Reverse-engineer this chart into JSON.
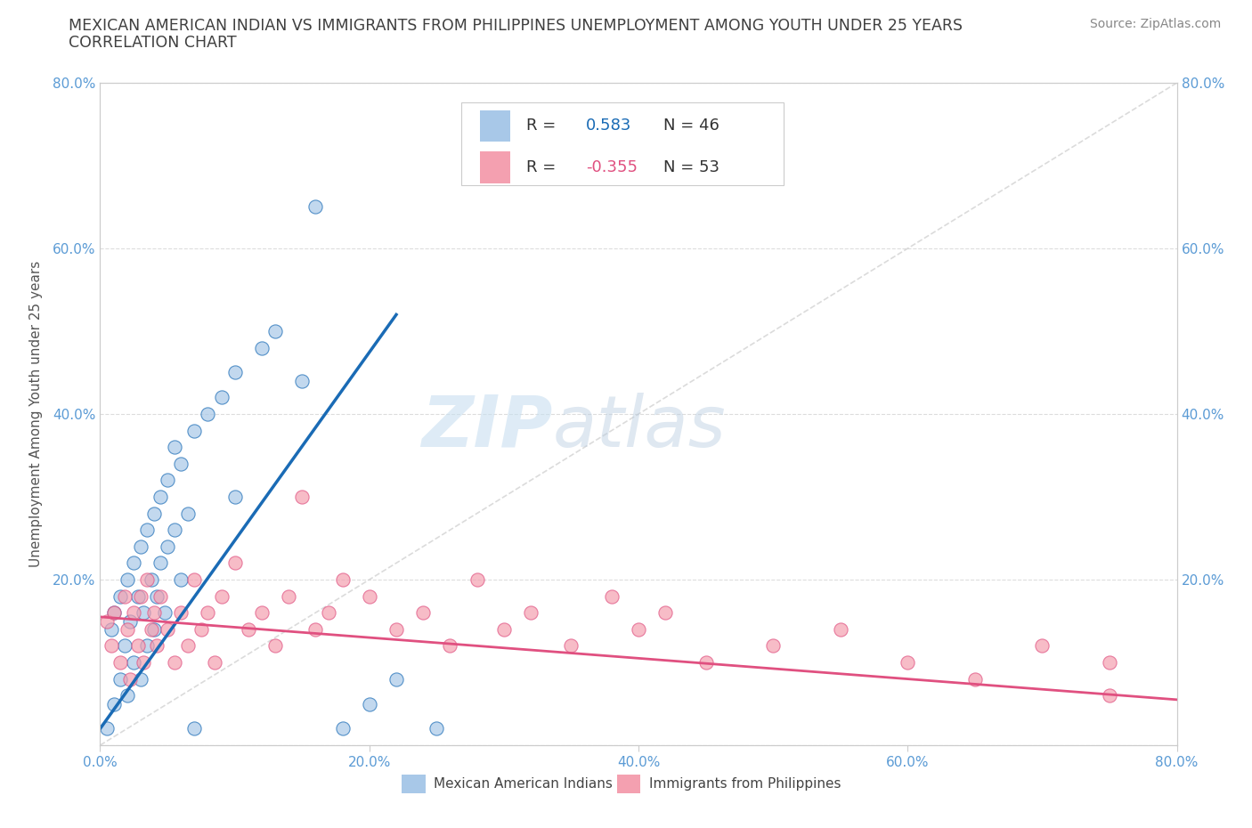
{
  "title_line1": "MEXICAN AMERICAN INDIAN VS IMMIGRANTS FROM PHILIPPINES UNEMPLOYMENT AMONG YOUTH UNDER 25 YEARS",
  "title_line2": "CORRELATION CHART",
  "source": "Source: ZipAtlas.com",
  "ylabel": "Unemployment Among Youth under 25 years",
  "xmin": 0.0,
  "xmax": 0.8,
  "ymin": 0.0,
  "ymax": 0.8,
  "xtick_labels": [
    "0.0%",
    "20.0%",
    "40.0%",
    "60.0%",
    "80.0%"
  ],
  "xtick_vals": [
    0.0,
    0.2,
    0.4,
    0.6,
    0.8
  ],
  "ytick_labels": [
    "",
    "20.0%",
    "40.0%",
    "60.0%",
    "80.0%"
  ],
  "ytick_vals": [
    0.0,
    0.2,
    0.4,
    0.6,
    0.8
  ],
  "r_blue": 0.583,
  "n_blue": 46,
  "r_pink": -0.355,
  "n_pink": 53,
  "blue_color": "#a8c8e8",
  "pink_color": "#f4a0b0",
  "blue_line_color": "#1a6bb5",
  "pink_line_color": "#e05080",
  "diagonal_color": "#cccccc",
  "background_color": "#ffffff",
  "watermark_color": "#d8e8f4",
  "blue_scatter_x": [
    0.005,
    0.008,
    0.01,
    0.01,
    0.015,
    0.015,
    0.018,
    0.02,
    0.02,
    0.022,
    0.025,
    0.025,
    0.028,
    0.03,
    0.03,
    0.032,
    0.035,
    0.035,
    0.038,
    0.04,
    0.04,
    0.042,
    0.045,
    0.045,
    0.048,
    0.05,
    0.05,
    0.055,
    0.055,
    0.06,
    0.06,
    0.065,
    0.07,
    0.07,
    0.08,
    0.09,
    0.1,
    0.1,
    0.12,
    0.13,
    0.15,
    0.16,
    0.18,
    0.2,
    0.22,
    0.25
  ],
  "blue_scatter_y": [
    0.02,
    0.14,
    0.05,
    0.16,
    0.08,
    0.18,
    0.12,
    0.06,
    0.2,
    0.15,
    0.1,
    0.22,
    0.18,
    0.08,
    0.24,
    0.16,
    0.12,
    0.26,
    0.2,
    0.14,
    0.28,
    0.18,
    0.22,
    0.3,
    0.16,
    0.24,
    0.32,
    0.26,
    0.36,
    0.2,
    0.34,
    0.28,
    0.02,
    0.38,
    0.4,
    0.42,
    0.45,
    0.3,
    0.48,
    0.5,
    0.44,
    0.65,
    0.02,
    0.05,
    0.08,
    0.02
  ],
  "pink_scatter_x": [
    0.005,
    0.008,
    0.01,
    0.015,
    0.018,
    0.02,
    0.022,
    0.025,
    0.028,
    0.03,
    0.032,
    0.035,
    0.038,
    0.04,
    0.042,
    0.045,
    0.05,
    0.055,
    0.06,
    0.065,
    0.07,
    0.075,
    0.08,
    0.085,
    0.09,
    0.1,
    0.11,
    0.12,
    0.13,
    0.14,
    0.15,
    0.16,
    0.17,
    0.18,
    0.2,
    0.22,
    0.24,
    0.26,
    0.28,
    0.3,
    0.32,
    0.35,
    0.38,
    0.4,
    0.42,
    0.45,
    0.5,
    0.55,
    0.6,
    0.65,
    0.7,
    0.75,
    0.75
  ],
  "pink_scatter_y": [
    0.15,
    0.12,
    0.16,
    0.1,
    0.18,
    0.14,
    0.08,
    0.16,
    0.12,
    0.18,
    0.1,
    0.2,
    0.14,
    0.16,
    0.12,
    0.18,
    0.14,
    0.1,
    0.16,
    0.12,
    0.2,
    0.14,
    0.16,
    0.1,
    0.18,
    0.22,
    0.14,
    0.16,
    0.12,
    0.18,
    0.3,
    0.14,
    0.16,
    0.2,
    0.18,
    0.14,
    0.16,
    0.12,
    0.2,
    0.14,
    0.16,
    0.12,
    0.18,
    0.14,
    0.16,
    0.1,
    0.12,
    0.14,
    0.1,
    0.08,
    0.12,
    0.06,
    0.1
  ],
  "blue_line_x": [
    0.0,
    0.22
  ],
  "blue_line_y": [
    0.02,
    0.52
  ],
  "pink_line_x": [
    0.0,
    0.8
  ],
  "pink_line_y": [
    0.155,
    0.055
  ]
}
